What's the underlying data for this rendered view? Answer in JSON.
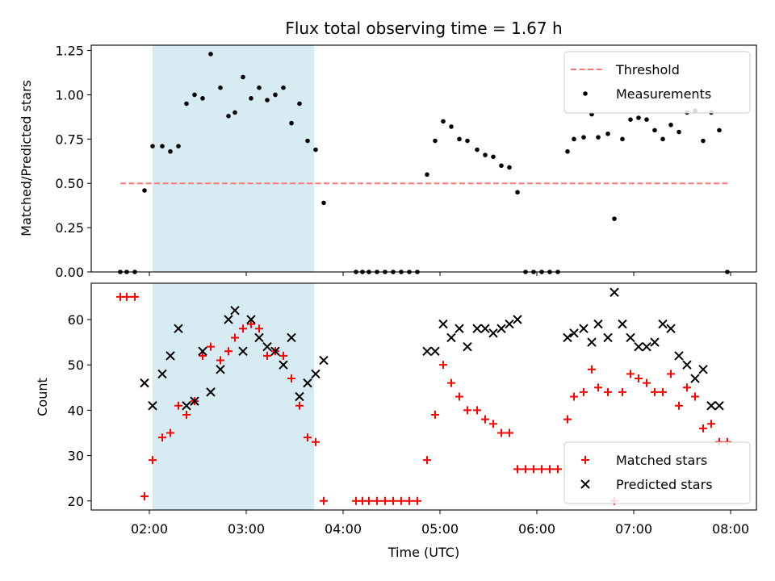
{
  "chart_data": [
    {
      "type": "scatter",
      "title": "Flux total observing time = 1.67 h",
      "xlabel": "",
      "ylabel": "Matched/Predicted stars",
      "xlim": [
        "01:24",
        "08:16"
      ],
      "ylim": [
        0,
        1.28
      ],
      "yticks": [
        0.0,
        0.25,
        0.5,
        0.75,
        1.0,
        1.25
      ],
      "ytick_labels": [
        "0.00",
        "0.25",
        "0.50",
        "0.75",
        "1.00",
        "1.25"
      ],
      "xticks": [
        "02:00",
        "03:00",
        "04:00",
        "05:00",
        "06:00",
        "07:00",
        "08:00"
      ],
      "shaded_span": {
        "x": [
          "02:02",
          "03:42"
        ],
        "color": "#add8e6"
      },
      "legend_position": "top-right",
      "threshold": {
        "name": "Threshold",
        "y": 0.5,
        "x": [
          "01:42",
          "07:58"
        ],
        "color": "#ff7777"
      },
      "series": [
        {
          "name": "Measurements",
          "color": "#000000",
          "marker": "dot",
          "points": [
            [
              "01:42",
              0.0
            ],
            [
              "01:46",
              0.0
            ],
            [
              "01:51",
              0.0
            ],
            [
              "01:57",
              0.46
            ],
            [
              "02:02",
              0.71
            ],
            [
              "02:08",
              0.71
            ],
            [
              "02:13",
              0.68
            ],
            [
              "02:18",
              0.71
            ],
            [
              "02:23",
              0.95
            ],
            [
              "02:28",
              1.0
            ],
            [
              "02:33",
              0.98
            ],
            [
              "02:38",
              1.23
            ],
            [
              "02:44",
              1.04
            ],
            [
              "02:49",
              0.88
            ],
            [
              "02:53",
              0.9
            ],
            [
              "02:58",
              1.1
            ],
            [
              "03:03",
              0.98
            ],
            [
              "03:08",
              1.04
            ],
            [
              "03:13",
              0.97
            ],
            [
              "03:18",
              1.0
            ],
            [
              "03:23",
              1.04
            ],
            [
              "03:28",
              0.84
            ],
            [
              "03:33",
              0.95
            ],
            [
              "03:38",
              0.74
            ],
            [
              "03:43",
              0.69
            ],
            [
              "03:48",
              0.39
            ],
            [
              "04:08",
              0.0
            ],
            [
              "04:12",
              0.0
            ],
            [
              "04:16",
              0.0
            ],
            [
              "04:21",
              0.0
            ],
            [
              "04:26",
              0.0
            ],
            [
              "04:31",
              0.0
            ],
            [
              "04:36",
              0.0
            ],
            [
              "04:41",
              0.0
            ],
            [
              "04:46",
              0.0
            ],
            [
              "04:52",
              0.55
            ],
            [
              "04:57",
              0.74
            ],
            [
              "05:02",
              0.85
            ],
            [
              "05:07",
              0.82
            ],
            [
              "05:12",
              0.75
            ],
            [
              "05:17",
              0.74
            ],
            [
              "05:23",
              0.69
            ],
            [
              "05:28",
              0.66
            ],
            [
              "05:33",
              0.65
            ],
            [
              "05:38",
              0.6
            ],
            [
              "05:43",
              0.59
            ],
            [
              "05:48",
              0.45
            ],
            [
              "05:53",
              0.0
            ],
            [
              "05:58",
              0.0
            ],
            [
              "06:03",
              0.0
            ],
            [
              "06:08",
              0.0
            ],
            [
              "06:13",
              0.0
            ],
            [
              "06:19",
              0.68
            ],
            [
              "06:23",
              0.75
            ],
            [
              "06:29",
              0.76
            ],
            [
              "06:34",
              0.89
            ],
            [
              "06:38",
              0.76
            ],
            [
              "06:44",
              0.78
            ],
            [
              "06:48",
              0.3
            ],
            [
              "06:53",
              0.75
            ],
            [
              "06:58",
              0.86
            ],
            [
              "07:03",
              0.87
            ],
            [
              "07:08",
              0.86
            ],
            [
              "07:13",
              0.8
            ],
            [
              "07:18",
              0.75
            ],
            [
              "07:23",
              0.83
            ],
            [
              "07:28",
              0.79
            ],
            [
              "07:33",
              0.9
            ],
            [
              "07:38",
              0.91
            ],
            [
              "07:43",
              0.74
            ],
            [
              "07:48",
              0.9
            ],
            [
              "07:53",
              0.8
            ],
            [
              "07:58",
              0.0
            ]
          ]
        }
      ]
    },
    {
      "type": "scatter",
      "title": "",
      "xlabel": "Time (UTC)",
      "ylabel": "Count",
      "xlim": [
        "01:24",
        "08:16"
      ],
      "ylim": [
        18,
        68
      ],
      "yticks": [
        20,
        30,
        40,
        50,
        60
      ],
      "ytick_labels": [
        "20",
        "30",
        "40",
        "50",
        "60"
      ],
      "xticks": [
        "02:00",
        "03:00",
        "04:00",
        "05:00",
        "06:00",
        "07:00",
        "08:00"
      ],
      "xtick_labels": [
        "02:00",
        "03:00",
        "04:00",
        "05:00",
        "06:00",
        "07:00",
        "08:00"
      ],
      "shaded_span": {
        "x": [
          "02:02",
          "03:42"
        ],
        "color": "#add8e6"
      },
      "legend_position": "bottom-right",
      "series": [
        {
          "name": "Matched stars",
          "color": "#ff0000",
          "marker": "plus",
          "points": [
            [
              "01:42",
              65
            ],
            [
              "01:46",
              65
            ],
            [
              "01:51",
              65
            ],
            [
              "01:57",
              21
            ],
            [
              "02:02",
              29
            ],
            [
              "02:08",
              34
            ],
            [
              "02:13",
              35
            ],
            [
              "02:18",
              41
            ],
            [
              "02:23",
              39
            ],
            [
              "02:28",
              42
            ],
            [
              "02:33",
              52
            ],
            [
              "02:38",
              54
            ],
            [
              "02:44",
              51
            ],
            [
              "02:49",
              53
            ],
            [
              "02:53",
              56
            ],
            [
              "02:58",
              58
            ],
            [
              "03:03",
              59
            ],
            [
              "03:08",
              58
            ],
            [
              "03:13",
              52
            ],
            [
              "03:18",
              53
            ],
            [
              "03:23",
              52
            ],
            [
              "03:28",
              47
            ],
            [
              "03:33",
              41
            ],
            [
              "03:38",
              34
            ],
            [
              "03:43",
              33
            ],
            [
              "03:48",
              20
            ],
            [
              "04:08",
              20
            ],
            [
              "04:12",
              20
            ],
            [
              "04:16",
              20
            ],
            [
              "04:21",
              20
            ],
            [
              "04:26",
              20
            ],
            [
              "04:31",
              20
            ],
            [
              "04:36",
              20
            ],
            [
              "04:41",
              20
            ],
            [
              "04:46",
              20
            ],
            [
              "04:52",
              29
            ],
            [
              "04:57",
              39
            ],
            [
              "05:02",
              50
            ],
            [
              "05:07",
              46
            ],
            [
              "05:12",
              43
            ],
            [
              "05:17",
              40
            ],
            [
              "05:23",
              40
            ],
            [
              "05:28",
              38
            ],
            [
              "05:33",
              37
            ],
            [
              "05:38",
              35
            ],
            [
              "05:43",
              35
            ],
            [
              "05:48",
              27
            ],
            [
              "05:53",
              27
            ],
            [
              "05:58",
              27
            ],
            [
              "06:03",
              27
            ],
            [
              "06:08",
              27
            ],
            [
              "06:13",
              27
            ],
            [
              "06:19",
              38
            ],
            [
              "06:23",
              43
            ],
            [
              "06:29",
              44
            ],
            [
              "06:34",
              49
            ],
            [
              "06:38",
              45
            ],
            [
              "06:44",
              44
            ],
            [
              "06:48",
              20
            ],
            [
              "06:53",
              44
            ],
            [
              "06:58",
              48
            ],
            [
              "07:03",
              47
            ],
            [
              "07:08",
              46
            ],
            [
              "07:13",
              44
            ],
            [
              "07:18",
              44
            ],
            [
              "07:23",
              48
            ],
            [
              "07:28",
              41
            ],
            [
              "07:33",
              45
            ],
            [
              "07:38",
              43
            ],
            [
              "07:43",
              36
            ],
            [
              "07:48",
              37
            ],
            [
              "07:53",
              33
            ],
            [
              "07:58",
              33
            ]
          ]
        },
        {
          "name": "Predicted stars",
          "color": "#000000",
          "marker": "x",
          "points": [
            [
              "01:57",
              46
            ],
            [
              "02:02",
              41
            ],
            [
              "02:08",
              48
            ],
            [
              "02:13",
              52
            ],
            [
              "02:18",
              58
            ],
            [
              "02:23",
              41
            ],
            [
              "02:28",
              42
            ],
            [
              "02:33",
              53
            ],
            [
              "02:38",
              44
            ],
            [
              "02:44",
              49
            ],
            [
              "02:49",
              60
            ],
            [
              "02:53",
              62
            ],
            [
              "02:58",
              53
            ],
            [
              "03:03",
              60
            ],
            [
              "03:08",
              56
            ],
            [
              "03:13",
              54
            ],
            [
              "03:18",
              53
            ],
            [
              "03:23",
              50
            ],
            [
              "03:28",
              56
            ],
            [
              "03:33",
              43
            ],
            [
              "03:38",
              46
            ],
            [
              "03:43",
              48
            ],
            [
              "03:48",
              51
            ],
            [
              "04:52",
              53
            ],
            [
              "04:57",
              53
            ],
            [
              "05:02",
              59
            ],
            [
              "05:07",
              56
            ],
            [
              "05:12",
              58
            ],
            [
              "05:17",
              54
            ],
            [
              "05:23",
              58
            ],
            [
              "05:28",
              58
            ],
            [
              "05:33",
              57
            ],
            [
              "05:38",
              58
            ],
            [
              "05:43",
              59
            ],
            [
              "05:48",
              60
            ],
            [
              "06:19",
              56
            ],
            [
              "06:23",
              57
            ],
            [
              "06:29",
              58
            ],
            [
              "06:34",
              55
            ],
            [
              "06:38",
              59
            ],
            [
              "06:44",
              56
            ],
            [
              "06:48",
              66
            ],
            [
              "06:53",
              59
            ],
            [
              "06:58",
              56
            ],
            [
              "07:03",
              54
            ],
            [
              "07:08",
              54
            ],
            [
              "07:13",
              55
            ],
            [
              "07:18",
              59
            ],
            [
              "07:23",
              58
            ],
            [
              "07:28",
              52
            ],
            [
              "07:33",
              50
            ],
            [
              "07:38",
              47
            ],
            [
              "07:43",
              49
            ],
            [
              "07:48",
              41
            ],
            [
              "07:53",
              41
            ]
          ]
        }
      ]
    }
  ]
}
